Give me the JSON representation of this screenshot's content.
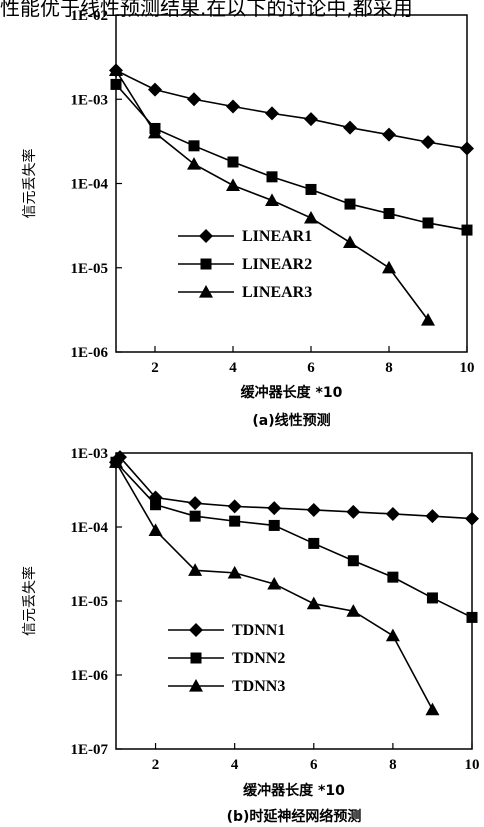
{
  "header_text": "性能优于线性预测结果.在以下的讨论中,都采用",
  "chart_data": [
    {
      "type": "line",
      "ylabel": "信元丢失率",
      "xlabel": "缓冲器长度 *10",
      "caption": "(a)线性预测",
      "x_ticks": [
        "2",
        "4",
        "6",
        "8",
        "10"
      ],
      "y_ticks": [
        "1E-02",
        "1E-03",
        "1E-04",
        "1E-05",
        "1E-06"
      ],
      "xlim": [
        1,
        10
      ],
      "ylim_log10": [
        -6,
        -2
      ],
      "y_scale": "log",
      "legend_position": "lower-left",
      "series": [
        {
          "name": "LINEAR1",
          "marker": "diamond",
          "x": [
            1,
            2,
            3,
            4,
            5,
            6,
            7,
            8,
            9,
            10
          ],
          "y": [
            0.0022,
            0.0013,
            0.001,
            0.00082,
            0.00068,
            0.00058,
            0.00046,
            0.00038,
            0.00031,
            0.00026
          ]
        },
        {
          "name": "LINEAR2",
          "marker": "square",
          "x": [
            1,
            2,
            3,
            4,
            5,
            6,
            7,
            8,
            9,
            10
          ],
          "y": [
            0.0015,
            0.00045,
            0.00028,
            0.00018,
            0.00012,
            8.5e-05,
            5.7e-05,
            4.4e-05,
            3.4e-05,
            2.8e-05
          ]
        },
        {
          "name": "LINEAR3",
          "marker": "triangle",
          "x": [
            1,
            2,
            3,
            4,
            5,
            6,
            7,
            8,
            9
          ],
          "y": [
            0.0022,
            0.0004,
            0.00017,
            9.5e-05,
            6.3e-05,
            3.9e-05,
            2e-05,
            1e-05,
            2.4e-06
          ]
        }
      ]
    },
    {
      "type": "line",
      "ylabel": "信元丢失率",
      "xlabel": "缓冲器长度 *10",
      "caption": "(b)时延神经网络预测",
      "x_ticks": [
        "2",
        "4",
        "6",
        "8",
        "10"
      ],
      "y_ticks": [
        "1E-03",
        "1E-04",
        "1E-05",
        "1E-06",
        "1E-07"
      ],
      "xlim": [
        1,
        10
      ],
      "ylim_log10": [
        -7,
        -3
      ],
      "y_scale": "log",
      "legend_position": "lower-left",
      "series": [
        {
          "name": "TDNN1",
          "marker": "diamond",
          "x": [
            1,
            1.1,
            2,
            3,
            4,
            5,
            6,
            7,
            8,
            9,
            10
          ],
          "y": [
            0.00075,
            0.00088,
            0.00025,
            0.00021,
            0.00019,
            0.00018,
            0.00017,
            0.00016,
            0.00015,
            0.00014,
            0.00013
          ]
        },
        {
          "name": "TDNN2",
          "marker": "square",
          "x": [
            1,
            2,
            3,
            4,
            5,
            6,
            7,
            8,
            9,
            10
          ],
          "y": [
            0.00075,
            0.0002,
            0.00014,
            0.00012,
            0.000105,
            6e-05,
            3.5e-05,
            2.1e-05,
            1.1e-05,
            6e-06
          ]
        },
        {
          "name": "TDNN3",
          "marker": "triangle",
          "x": [
            1,
            2,
            3,
            4,
            5,
            6,
            7,
            8,
            9
          ],
          "y": [
            0.00075,
            9e-05,
            2.6e-05,
            2.4e-05,
            1.7e-05,
            9.2e-06,
            7.3e-06,
            3.4e-06,
            3.4e-07
          ]
        }
      ]
    }
  ]
}
